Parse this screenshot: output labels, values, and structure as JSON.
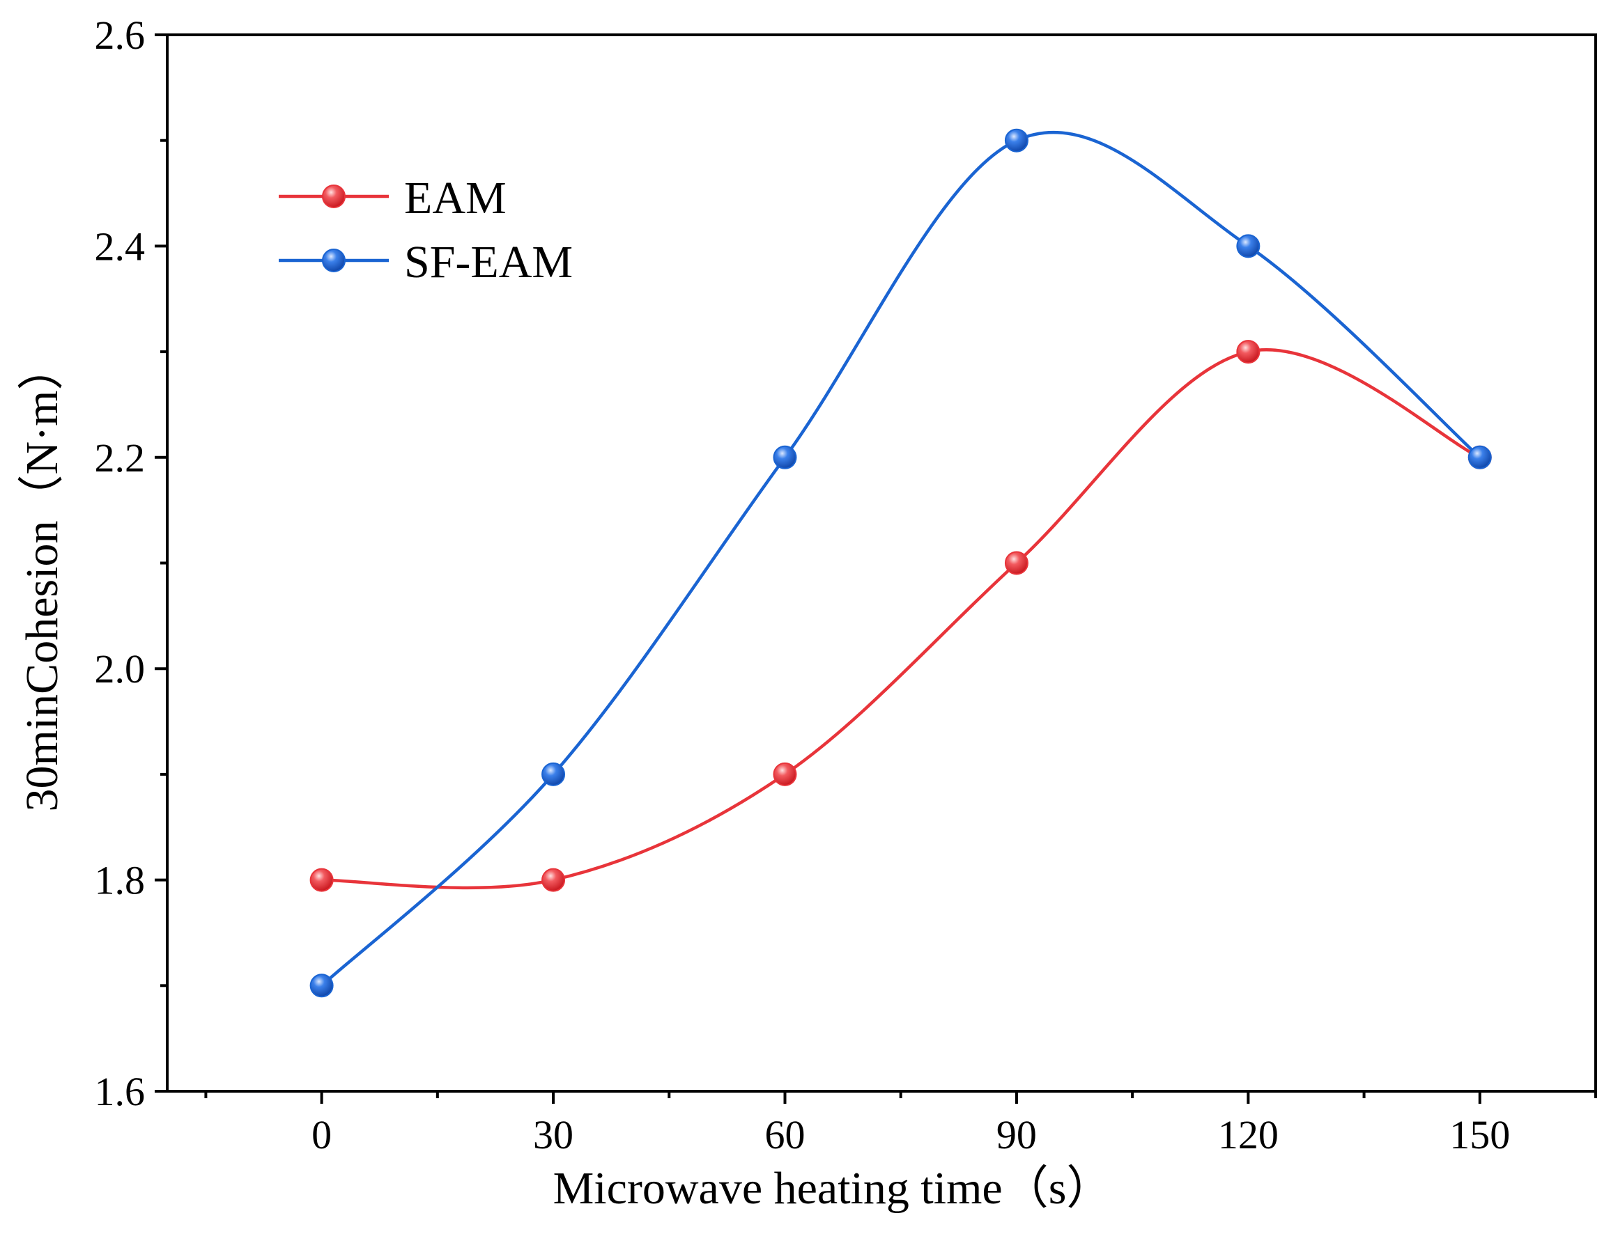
{
  "chart_data": {
    "type": "line",
    "title": "",
    "xlabel": "Microwave heating time（s）",
    "ylabel": "30minCohesion（N·m）",
    "x": [
      0,
      30,
      60,
      90,
      120,
      150
    ],
    "x_tick_labels": [
      "0",
      "30",
      "60",
      "90",
      "120",
      "150"
    ],
    "xlim": [
      -20,
      165
    ],
    "ylim": [
      1.6,
      2.6
    ],
    "y_tick_labels": [
      "1.6",
      "1.8",
      "2.0",
      "2.2",
      "2.4",
      "2.6"
    ],
    "y_ticks": [
      1.6,
      1.8,
      2.0,
      2.2,
      2.4,
      2.6
    ],
    "grid": false,
    "legend_position": "top-left",
    "series": [
      {
        "name": "EAM",
        "color": "#e8343a",
        "marker": "circle",
        "smooth": true,
        "values": [
          1.8,
          1.8,
          1.9,
          2.1,
          2.3,
          2.2
        ]
      },
      {
        "name": "SF-EAM",
        "color": "#1a64d2",
        "marker": "circle",
        "smooth": true,
        "values": [
          1.7,
          1.9,
          2.2,
          2.5,
          2.4,
          2.2
        ]
      }
    ]
  }
}
